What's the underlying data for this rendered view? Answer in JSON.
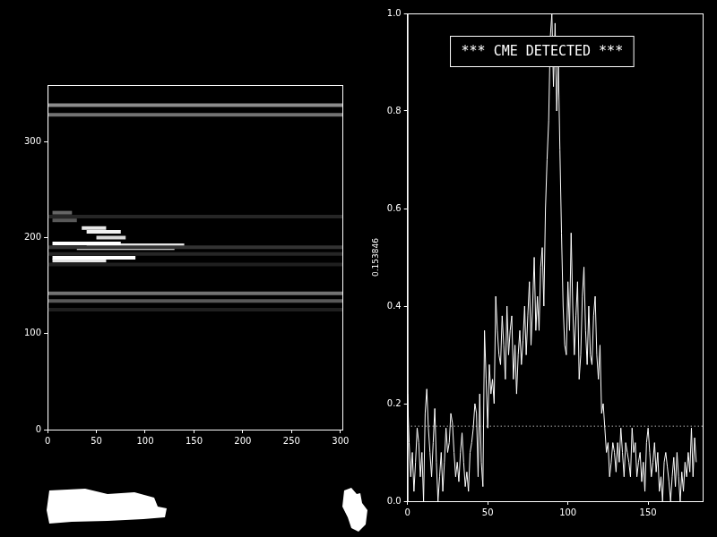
{
  "chart_data": [
    {
      "type": "image",
      "streaks": [
        [
          0,
          302,
          338,
          0.55
        ],
        [
          0,
          302,
          328,
          0.45
        ],
        [
          0,
          302,
          142,
          0.45
        ],
        [
          0,
          302,
          134,
          0.35
        ],
        [
          0,
          302,
          190,
          0.2
        ],
        [
          0,
          302,
          183,
          0.15
        ],
        [
          0,
          302,
          172,
          0.12
        ],
        [
          0,
          302,
          125,
          0.12
        ],
        [
          0,
          302,
          222,
          0.15
        ],
        [
          5,
          90,
          179,
          1.0
        ],
        [
          5,
          60,
          176,
          0.9
        ],
        [
          5,
          75,
          194,
          1.0
        ],
        [
          30,
          130,
          189,
          0.95
        ],
        [
          40,
          140,
          192,
          0.9
        ],
        [
          40,
          75,
          206,
          0.95
        ],
        [
          35,
          60,
          210,
          0.9
        ],
        [
          50,
          80,
          200,
          0.85
        ],
        [
          5,
          25,
          226,
          0.4
        ],
        [
          5,
          30,
          218,
          0.35
        ]
      ],
      "xlim": [
        0,
        302
      ],
      "ylim": [
        0,
        359
      ],
      "xticks": [
        0,
        50,
        100,
        150,
        200,
        250,
        300
      ],
      "yticks": [
        0,
        100,
        200,
        300
      ],
      "grid": false
    },
    {
      "type": "line",
      "annotation": "*** CME DETECTED ***",
      "ylabel": "0.153846",
      "threshold": 0.153846,
      "color": "#ffffff",
      "x": [
        0,
        1,
        2,
        3,
        4,
        5,
        6,
        7,
        8,
        9,
        10,
        11,
        12,
        13,
        14,
        15,
        16,
        17,
        18,
        19,
        20,
        21,
        22,
        23,
        24,
        25,
        26,
        27,
        28,
        29,
        30,
        31,
        32,
        33,
        34,
        35,
        36,
        37,
        38,
        39,
        40,
        41,
        42,
        43,
        44,
        45,
        46,
        47,
        48,
        49,
        50,
        51,
        52,
        53,
        54,
        55,
        56,
        57,
        58,
        59,
        60,
        61,
        62,
        63,
        64,
        65,
        66,
        67,
        68,
        69,
        70,
        71,
        72,
        73,
        74,
        75,
        76,
        77,
        78,
        79,
        80,
        81,
        82,
        83,
        84,
        85,
        86,
        87,
        88,
        89,
        90,
        91,
        92,
        93,
        94,
        95,
        96,
        97,
        98,
        99,
        100,
        101,
        102,
        103,
        104,
        105,
        106,
        107,
        108,
        109,
        110,
        111,
        112,
        113,
        114,
        115,
        116,
        117,
        118,
        119,
        120,
        121,
        122,
        123,
        124,
        125,
        126,
        127,
        128,
        129,
        130,
        131,
        132,
        133,
        134,
        135,
        136,
        137,
        138,
        139,
        140,
        141,
        142,
        143,
        144,
        145,
        146,
        147,
        148,
        149,
        150,
        151,
        152,
        153,
        154,
        155,
        156,
        157,
        158,
        159,
        160,
        161,
        162,
        163,
        164,
        165,
        166,
        167,
        168,
        169,
        170,
        171,
        172,
        173,
        174,
        175,
        176,
        177,
        178,
        179,
        180
      ],
      "values": [
        0.22,
        0.12,
        0.05,
        0.1,
        0.02,
        0.08,
        0.15,
        0.12,
        0.05,
        0.1,
        0.0,
        0.18,
        0.23,
        0.15,
        0.1,
        0.05,
        0.12,
        0.19,
        0.08,
        0.0,
        0.05,
        0.1,
        0.02,
        0.08,
        0.15,
        0.1,
        0.12,
        0.18,
        0.16,
        0.1,
        0.05,
        0.08,
        0.04,
        0.1,
        0.14,
        0.08,
        0.03,
        0.06,
        0.02,
        0.1,
        0.12,
        0.15,
        0.2,
        0.18,
        0.05,
        0.22,
        0.08,
        0.03,
        0.35,
        0.25,
        0.15,
        0.28,
        0.22,
        0.25,
        0.2,
        0.42,
        0.35,
        0.3,
        0.28,
        0.38,
        0.32,
        0.25,
        0.4,
        0.3,
        0.35,
        0.38,
        0.25,
        0.32,
        0.22,
        0.3,
        0.35,
        0.28,
        0.33,
        0.4,
        0.3,
        0.38,
        0.45,
        0.32,
        0.4,
        0.5,
        0.35,
        0.42,
        0.35,
        0.48,
        0.52,
        0.4,
        0.6,
        0.7,
        0.78,
        0.95,
        1.0,
        0.85,
        0.98,
        0.8,
        0.9,
        0.72,
        0.55,
        0.4,
        0.32,
        0.3,
        0.45,
        0.35,
        0.55,
        0.4,
        0.3,
        0.38,
        0.45,
        0.25,
        0.3,
        0.42,
        0.48,
        0.35,
        0.28,
        0.4,
        0.3,
        0.28,
        0.38,
        0.42,
        0.3,
        0.25,
        0.32,
        0.18,
        0.2,
        0.15,
        0.1,
        0.12,
        0.05,
        0.08,
        0.12,
        0.1,
        0.06,
        0.12,
        0.08,
        0.15,
        0.1,
        0.05,
        0.12,
        0.1,
        0.08,
        0.05,
        0.15,
        0.1,
        0.12,
        0.05,
        0.08,
        0.1,
        0.04,
        0.08,
        0.02,
        0.12,
        0.15,
        0.1,
        0.05,
        0.08,
        0.12,
        0.06,
        0.1,
        0.02,
        0.05,
        0.0,
        0.08,
        0.1,
        0.07,
        0.04,
        0.0,
        0.05,
        0.09,
        0.03,
        0.1,
        0.05,
        0.0,
        0.06,
        0.02,
        0.08,
        0.05,
        0.1,
        0.06,
        0.15,
        0.05,
        0.13,
        0.08
      ],
      "xlim": [
        0,
        184
      ],
      "ylim": [
        0,
        1
      ],
      "xticks": [
        0,
        50,
        100,
        150
      ],
      "yticks": [
        {
          "value": 0,
          "label": "0.0"
        },
        {
          "value": 0.2,
          "label": "0.2"
        },
        {
          "value": 0.4,
          "label": "0.4"
        },
        {
          "value": 0.6,
          "label": "0.6"
        },
        {
          "value": 0.8,
          "label": "0.8"
        },
        {
          "value": 1,
          "label": "1.0"
        }
      ],
      "grid": false
    }
  ]
}
